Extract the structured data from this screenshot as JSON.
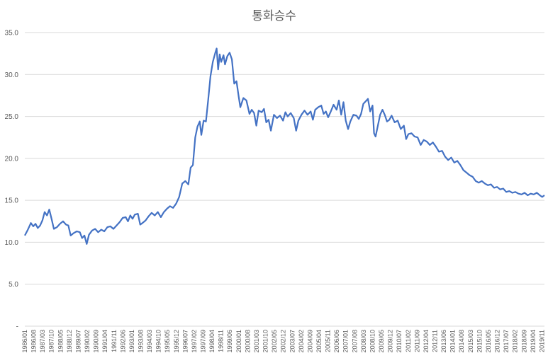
{
  "chart_data": {
    "type": "line",
    "title": "통화승수",
    "xlabel": "",
    "ylabel": "",
    "ylim": [
      0,
      35
    ],
    "y_ticks": [
      "-",
      "5.0",
      "10.0",
      "15.0",
      "20.0",
      "25.0",
      "30.0",
      "35.0"
    ],
    "grid": true,
    "legend": "none",
    "line_color": "#4472C4",
    "x_tick_labels": [
      "1986/01",
      "1986/08",
      "1987/03",
      "1987/10",
      "1988/05",
      "1988/12",
      "1989/07",
      "1990/02",
      "1990/09",
      "1991/04",
      "1991/11",
      "1992/06",
      "1993/01",
      "1993/08",
      "1994/03",
      "1994/10",
      "1995/05",
      "1995/12",
      "1996/07",
      "1997/02",
      "1997/09",
      "1998/04",
      "1998/11",
      "1999/06",
      "2000/01",
      "2000/08",
      "2001/03",
      "2001/10",
      "2002/05",
      "2002/12",
      "2003/07",
      "2004/02",
      "2004/09",
      "2005/04",
      "2005/11",
      "2006/06",
      "2007/01",
      "2007/08",
      "2008/03",
      "2008/10",
      "2009/05",
      "2009/12",
      "2010/07",
      "2011/02",
      "2011/09",
      "2012/04",
      "2012/11",
      "2013/06",
      "2014/01",
      "2014/08",
      "2015/03",
      "2015/10",
      "2016/05",
      "2016/12",
      "2017/07",
      "2018/02",
      "2018/09",
      "2019/04",
      "2019/11"
    ],
    "series": [
      {
        "points": [
          [
            1986.0,
            10.8
          ],
          [
            1986.2,
            11.5
          ],
          [
            1986.4,
            12.3
          ],
          [
            1986.55,
            11.9
          ],
          [
            1986.7,
            12.2
          ],
          [
            1986.85,
            11.7
          ],
          [
            1987.0,
            12.0
          ],
          [
            1987.15,
            12.6
          ],
          [
            1987.3,
            13.6
          ],
          [
            1987.45,
            13.2
          ],
          [
            1987.6,
            13.9
          ],
          [
            1987.75,
            12.8
          ],
          [
            1987.9,
            11.6
          ],
          [
            1988.1,
            11.8
          ],
          [
            1988.3,
            12.2
          ],
          [
            1988.5,
            12.5
          ],
          [
            1988.7,
            12.1
          ],
          [
            1988.85,
            12.0
          ],
          [
            1989.0,
            10.8
          ],
          [
            1989.2,
            11.1
          ],
          [
            1989.4,
            11.3
          ],
          [
            1989.6,
            11.2
          ],
          [
            1989.75,
            10.5
          ],
          [
            1989.9,
            10.8
          ],
          [
            1990.05,
            9.8
          ],
          [
            1990.2,
            10.9
          ],
          [
            1990.4,
            11.4
          ],
          [
            1990.6,
            11.6
          ],
          [
            1990.8,
            11.2
          ],
          [
            1991.0,
            11.5
          ],
          [
            1991.2,
            11.3
          ],
          [
            1991.4,
            11.8
          ],
          [
            1991.6,
            11.9
          ],
          [
            1991.8,
            11.6
          ],
          [
            1992.0,
            12.0
          ],
          [
            1992.2,
            12.4
          ],
          [
            1992.4,
            12.9
          ],
          [
            1992.6,
            13.0
          ],
          [
            1992.75,
            12.5
          ],
          [
            1992.9,
            13.2
          ],
          [
            1993.05,
            12.8
          ],
          [
            1993.2,
            13.3
          ],
          [
            1993.4,
            13.4
          ],
          [
            1993.55,
            12.1
          ],
          [
            1993.7,
            12.3
          ],
          [
            1993.9,
            12.6
          ],
          [
            1994.1,
            13.1
          ],
          [
            1994.3,
            13.5
          ],
          [
            1994.5,
            13.2
          ],
          [
            1994.7,
            13.6
          ],
          [
            1994.9,
            13.0
          ],
          [
            1995.1,
            13.6
          ],
          [
            1995.3,
            14.0
          ],
          [
            1995.5,
            14.3
          ],
          [
            1995.7,
            14.1
          ],
          [
            1995.9,
            14.6
          ],
          [
            1996.1,
            15.4
          ],
          [
            1996.3,
            17.0
          ],
          [
            1996.5,
            17.3
          ],
          [
            1996.7,
            16.9
          ],
          [
            1996.85,
            18.9
          ],
          [
            1997.0,
            19.2
          ],
          [
            1997.15,
            22.5
          ],
          [
            1997.3,
            23.8
          ],
          [
            1997.45,
            24.4
          ],
          [
            1997.55,
            22.8
          ],
          [
            1997.7,
            24.5
          ],
          [
            1997.85,
            24.4
          ],
          [
            1998.0,
            27.0
          ],
          [
            1998.15,
            29.8
          ],
          [
            1998.3,
            31.5
          ],
          [
            1998.45,
            32.5
          ],
          [
            1998.55,
            33.1
          ],
          [
            1998.65,
            30.6
          ],
          [
            1998.75,
            32.4
          ],
          [
            1998.85,
            31.5
          ],
          [
            1999.0,
            32.3
          ],
          [
            1999.1,
            31.2
          ],
          [
            1999.25,
            32.2
          ],
          [
            1999.4,
            32.6
          ],
          [
            1999.55,
            31.8
          ],
          [
            1999.7,
            28.9
          ],
          [
            1999.85,
            29.2
          ],
          [
            2000.0,
            27.3
          ],
          [
            2000.1,
            26.1
          ],
          [
            2000.3,
            27.2
          ],
          [
            2000.5,
            26.9
          ],
          [
            2000.7,
            25.3
          ],
          [
            2000.85,
            25.8
          ],
          [
            2001.0,
            25.4
          ],
          [
            2001.15,
            23.9
          ],
          [
            2001.3,
            25.7
          ],
          [
            2001.5,
            25.5
          ],
          [
            2001.65,
            25.9
          ],
          [
            2001.8,
            24.3
          ],
          [
            2001.95,
            24.6
          ],
          [
            2002.1,
            23.3
          ],
          [
            2002.3,
            25.2
          ],
          [
            2002.5,
            24.8
          ],
          [
            2002.7,
            25.1
          ],
          [
            2002.9,
            24.5
          ],
          [
            2003.05,
            25.5
          ],
          [
            2003.2,
            25.0
          ],
          [
            2003.4,
            25.4
          ],
          [
            2003.6,
            24.8
          ],
          [
            2003.75,
            23.3
          ],
          [
            2003.9,
            24.5
          ],
          [
            2004.1,
            25.2
          ],
          [
            2004.3,
            25.7
          ],
          [
            2004.5,
            25.2
          ],
          [
            2004.7,
            25.6
          ],
          [
            2004.85,
            24.6
          ],
          [
            2005.0,
            25.8
          ],
          [
            2005.2,
            26.1
          ],
          [
            2005.4,
            26.3
          ],
          [
            2005.55,
            25.3
          ],
          [
            2005.7,
            25.6
          ],
          [
            2005.85,
            24.9
          ],
          [
            2006.0,
            25.5
          ],
          [
            2006.2,
            26.4
          ],
          [
            2006.4,
            25.8
          ],
          [
            2006.55,
            26.9
          ],
          [
            2006.7,
            25.2
          ],
          [
            2006.85,
            26.7
          ],
          [
            2007.0,
            24.5
          ],
          [
            2007.15,
            23.5
          ],
          [
            2007.3,
            24.4
          ],
          [
            2007.5,
            25.2
          ],
          [
            2007.7,
            25.1
          ],
          [
            2007.85,
            24.7
          ],
          [
            2008.0,
            25.3
          ],
          [
            2008.15,
            26.5
          ],
          [
            2008.3,
            26.8
          ],
          [
            2008.45,
            27.1
          ],
          [
            2008.6,
            25.6
          ],
          [
            2008.75,
            26.3
          ],
          [
            2008.85,
            23.0
          ],
          [
            2008.95,
            22.6
          ],
          [
            2009.1,
            23.9
          ],
          [
            2009.25,
            25.2
          ],
          [
            2009.4,
            25.8
          ],
          [
            2009.55,
            25.2
          ],
          [
            2009.7,
            24.4
          ],
          [
            2009.85,
            24.6
          ],
          [
            2010.0,
            25.1
          ],
          [
            2010.2,
            24.3
          ],
          [
            2010.4,
            24.5
          ],
          [
            2010.6,
            23.5
          ],
          [
            2010.8,
            23.9
          ],
          [
            2010.95,
            22.3
          ],
          [
            2011.1,
            22.9
          ],
          [
            2011.3,
            23.0
          ],
          [
            2011.5,
            22.6
          ],
          [
            2011.7,
            22.5
          ],
          [
            2011.9,
            21.6
          ],
          [
            2012.1,
            22.2
          ],
          [
            2012.3,
            22.0
          ],
          [
            2012.5,
            21.6
          ],
          [
            2012.7,
            21.9
          ],
          [
            2012.9,
            21.4
          ],
          [
            2013.1,
            20.8
          ],
          [
            2013.3,
            20.9
          ],
          [
            2013.5,
            20.2
          ],
          [
            2013.7,
            19.8
          ],
          [
            2013.9,
            20.1
          ],
          [
            2014.1,
            19.5
          ],
          [
            2014.3,
            19.7
          ],
          [
            2014.5,
            19.2
          ],
          [
            2014.7,
            18.6
          ],
          [
            2014.9,
            18.3
          ],
          [
            2015.1,
            18.0
          ],
          [
            2015.3,
            17.8
          ],
          [
            2015.5,
            17.3
          ],
          [
            2015.7,
            17.1
          ],
          [
            2015.9,
            17.3
          ],
          [
            2016.1,
            17.0
          ],
          [
            2016.3,
            16.8
          ],
          [
            2016.5,
            16.9
          ],
          [
            2016.7,
            16.5
          ],
          [
            2016.9,
            16.6
          ],
          [
            2017.1,
            16.3
          ],
          [
            2017.3,
            16.4
          ],
          [
            2017.5,
            16.0
          ],
          [
            2017.7,
            16.1
          ],
          [
            2017.9,
            15.9
          ],
          [
            2018.1,
            16.0
          ],
          [
            2018.3,
            15.8
          ],
          [
            2018.5,
            15.7
          ],
          [
            2018.7,
            15.9
          ],
          [
            2018.9,
            15.6
          ],
          [
            2019.1,
            15.8
          ],
          [
            2019.3,
            15.7
          ],
          [
            2019.5,
            15.9
          ],
          [
            2019.7,
            15.6
          ],
          [
            2019.85,
            15.4
          ],
          [
            2020.0,
            15.6
          ]
        ]
      }
    ]
  }
}
